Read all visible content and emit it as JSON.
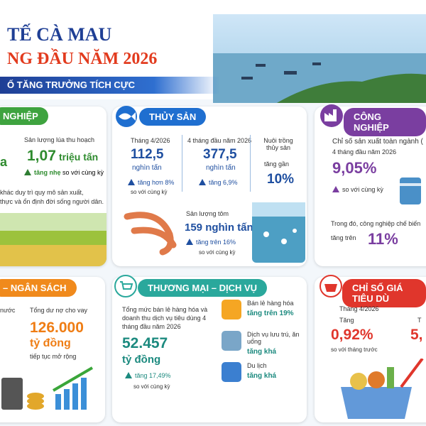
{
  "header": {
    "title_line1": "TẾ CÀ MAU",
    "title_line2": "NG ĐẦU NĂM 2026",
    "banner": "Ố TĂNG TRƯỞNG TÍCH CỰC"
  },
  "agriculture": {
    "heading": "NGHIỆP",
    "left_fragment": "a",
    "rice_label": "Sản lượng lúa thu hoạch",
    "rice_value": "1,07",
    "rice_unit": "triệu tấn",
    "rice_change": "tăng nhẹ",
    "rice_compare": "so với cùng kỳ",
    "note_line1": "khác duy trì quy mô sản xuất,",
    "note_line2": "thực và ổn định đời sống người dân."
  },
  "fishery": {
    "heading": "THỦY SẢN",
    "april_label": "Tháng 4/2026",
    "april_value": "112,5",
    "april_unit": "nghìn tấn",
    "april_change": "tăng hơn 8%",
    "april_compare": "so với cùng kỳ",
    "ytd_label": "4 tháng đầu năm 2026",
    "ytd_value": "377,5",
    "ytd_unit": "nghìn tấn",
    "ytd_change": "tăng 6,9%",
    "aqua_label": "Nuôi trồng thủy sản",
    "aqua_change": "tăng gần",
    "aqua_value": "10%",
    "shrimp_label": "Sản lượng tôm",
    "shrimp_value": "159 nghìn tấn",
    "shrimp_change": "tăng trên 16%",
    "shrimp_compare": "so với cùng kỳ"
  },
  "industry": {
    "heading": "CÔNG NGHIỆP",
    "index_label": "Chỉ số sản xuất toàn ngành (",
    "period": "4 tháng đầu năm 2026",
    "index_value": "9,05%",
    "index_compare": "so với cùng kỳ",
    "processing_label": "Trong đó, công nghiệp chế biến",
    "processing_change": "tăng trên",
    "processing_value": "11%"
  },
  "finance": {
    "heading": "– NGÂN SÁCH",
    "left_fragment": "nước",
    "credit_label": "Tổng dư nợ cho vay",
    "credit_value": "126.000",
    "credit_unit": "tỷ đồng",
    "credit_note": "tiếp tục mở rộng"
  },
  "trade": {
    "heading": "THƯƠNG MẠI – DỊCH VỤ",
    "retail_total_label": "Tổng mức bán lẻ hàng hóa và doanh thu dịch vụ tiêu dùng 4 tháng đầu năm 2026",
    "retail_total_value": "52.457",
    "retail_total_unit": "tỷ đồng",
    "retail_total_change": "tăng 17,49%",
    "retail_total_compare": "so với cùng kỳ",
    "items": [
      {
        "label": "Bán lẻ hàng hóa",
        "change": "tăng trên 19%"
      },
      {
        "label": "Dịch vụ lưu trú, ăn uống",
        "change": "tăng khá"
      },
      {
        "label": "Du lịch",
        "change": "tăng khá"
      }
    ]
  },
  "cpi": {
    "heading": "CHỈ SỐ GIÁ TIÊU DÙ",
    "april_label": "Tháng 4/2026",
    "increase_label": "Tăng",
    "monthly_value": "0,92%",
    "monthly_compare": "so với tháng trước",
    "second_value": "5,",
    "second_label": "T"
  }
}
